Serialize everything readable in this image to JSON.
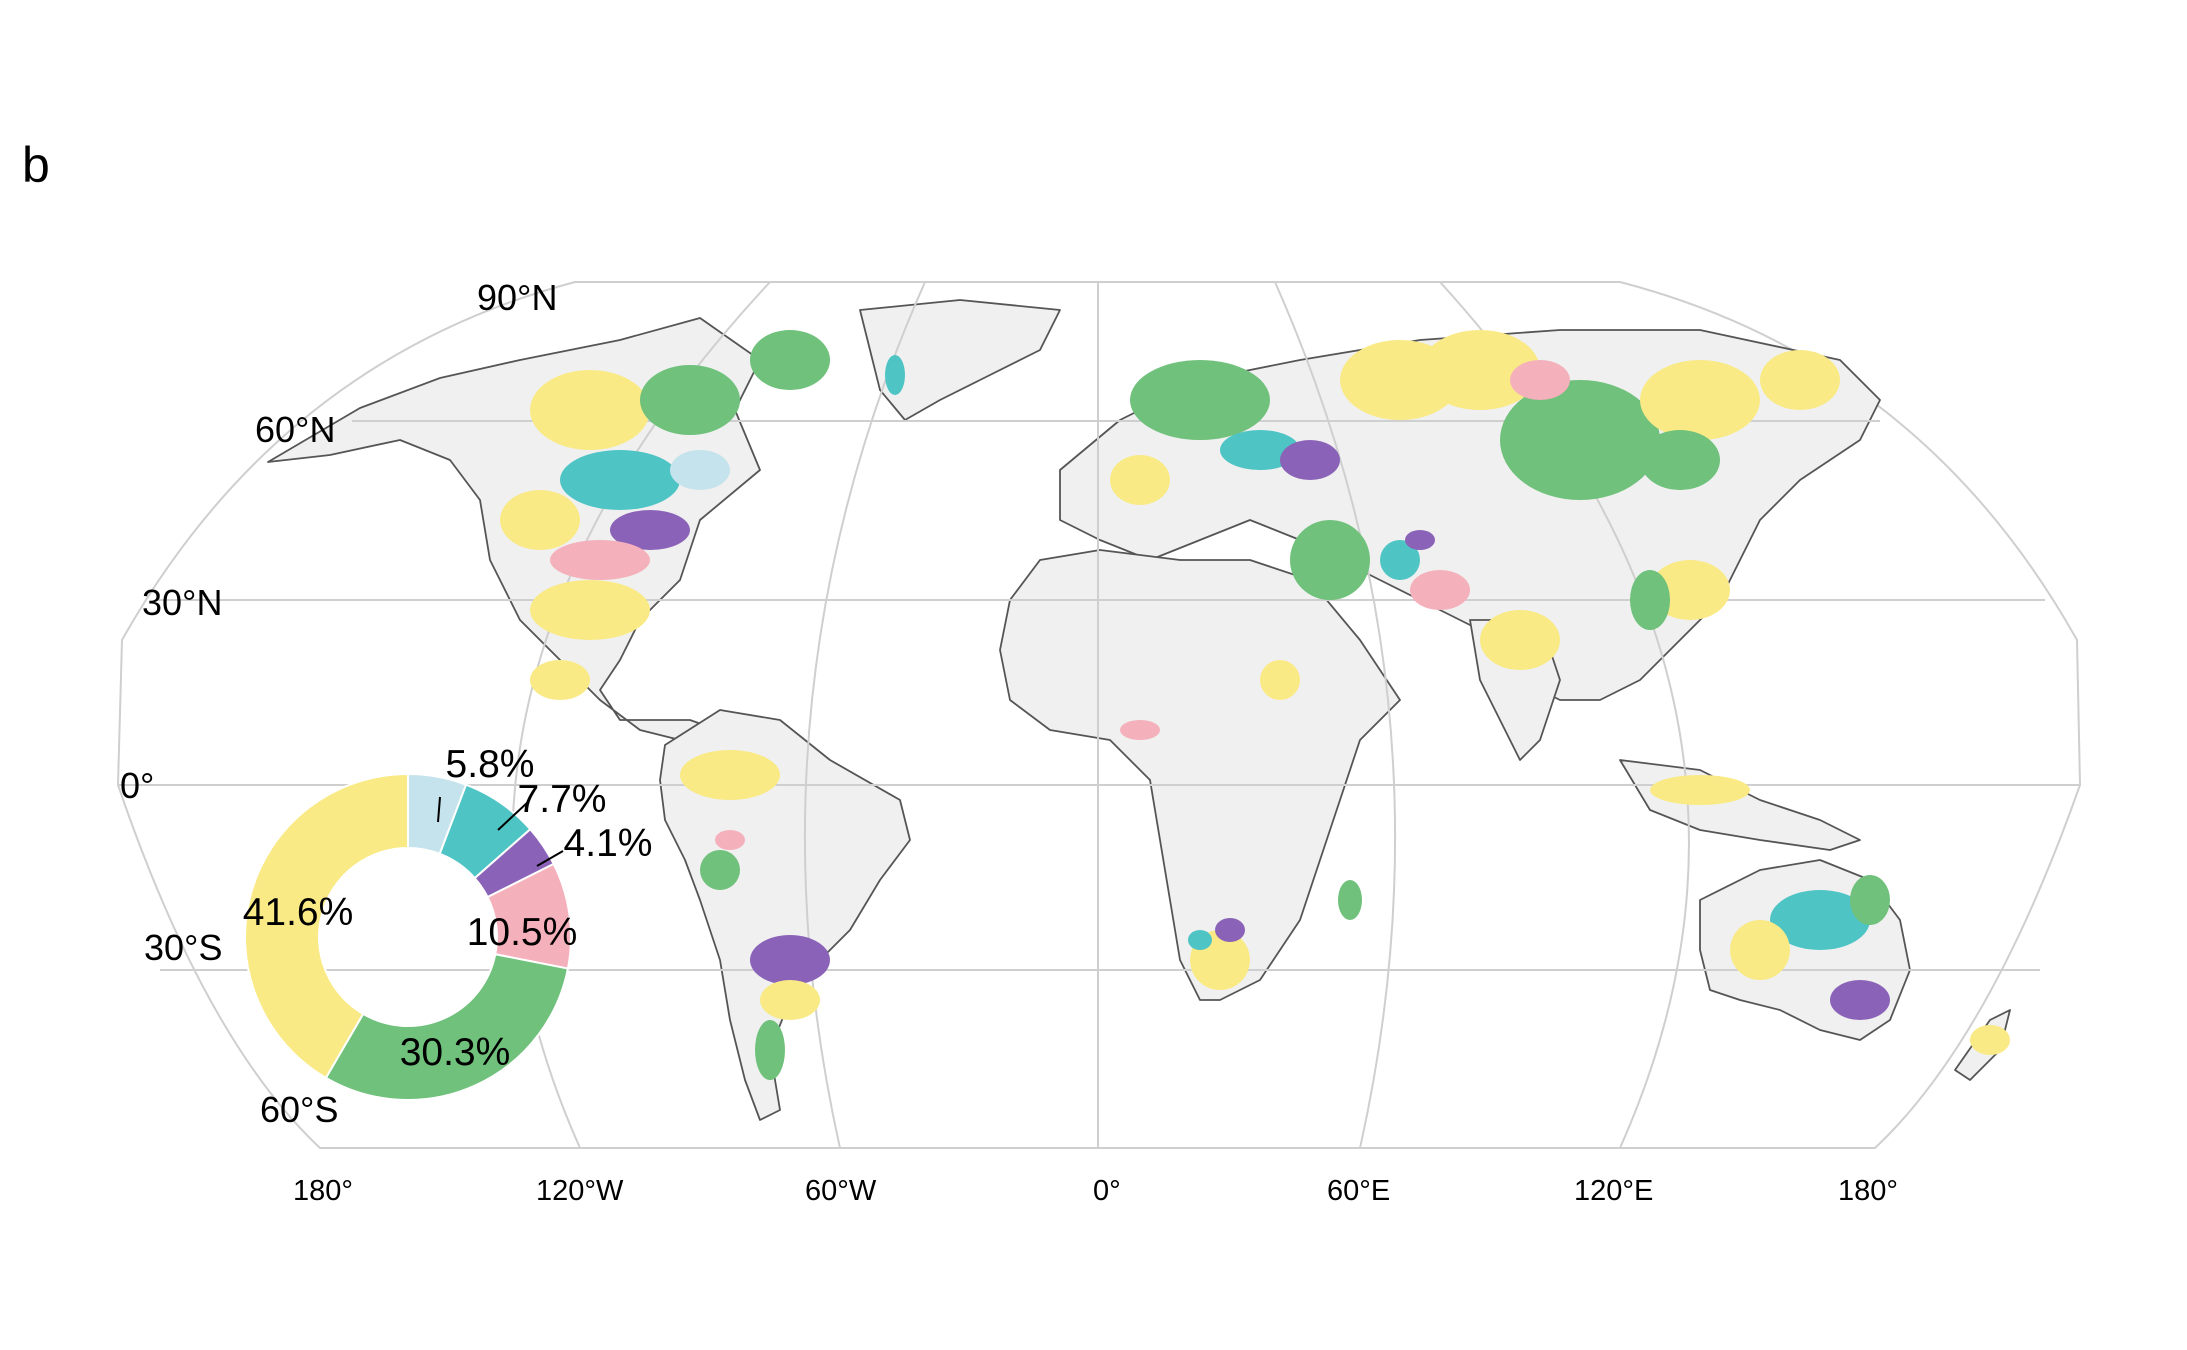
{
  "panel_label": "b",
  "map": {
    "projection": "Robinson",
    "graticule_color": "#cfcfcf",
    "land_color": "#f0f0f0",
    "border_color": "#555555",
    "lat_labels": [
      "90°N",
      "60°N",
      "30°N",
      "0°",
      "30°S",
      "60°S"
    ],
    "lon_labels": [
      "180°",
      "120°W",
      "60°W",
      "0°",
      "60°E",
      "120°E",
      "180°"
    ]
  },
  "legend_colors": {
    "light_blue": "#c5e3ec",
    "teal": "#4fc4c4",
    "purple": "#8a63b8",
    "pink": "#f4b0bb",
    "green": "#6fc17b",
    "yellow": "#f9ea86"
  },
  "chart_data": {
    "type": "pie",
    "style": "donut",
    "slices": [
      {
        "label": "5.8%",
        "value": 5.8,
        "color": "#c5e3ec"
      },
      {
        "label": "7.7%",
        "value": 7.7,
        "color": "#4fc4c4"
      },
      {
        "label": "4.1%",
        "value": 4.1,
        "color": "#8a63b8"
      },
      {
        "label": "10.5%",
        "value": 10.5,
        "color": "#f4b0bb"
      },
      {
        "label": "30.3%",
        "value": 30.3,
        "color": "#6fc17b"
      },
      {
        "label": "41.6%",
        "value": 41.6,
        "color": "#f9ea86"
      }
    ]
  }
}
